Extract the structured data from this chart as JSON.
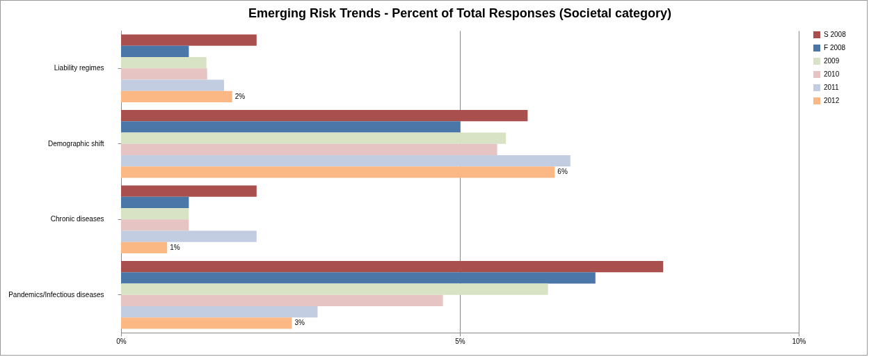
{
  "chart_data": {
    "type": "bar",
    "orientation": "horizontal",
    "title": "Emerging Risk Trends - Percent of Total Responses (Societal category)",
    "categories": [
      "Liability regimes",
      "Demographic shift",
      "Chronic diseases",
      "Pandemics/Infectious diseases"
    ],
    "series": [
      {
        "name": "S 2008",
        "color": "#a94f4d",
        "values": [
          2.0,
          6.0,
          2.0,
          8.0
        ]
      },
      {
        "name": "F 2008",
        "color": "#4a77a8",
        "values": [
          1.0,
          5.0,
          1.0,
          7.0
        ]
      },
      {
        "name": "2009",
        "color": "#d7e3c4",
        "values": [
          1.26,
          5.68,
          1.0,
          6.3
        ]
      },
      {
        "name": "2010",
        "color": "#e6c4c4",
        "values": [
          1.27,
          5.55,
          1.0,
          4.75
        ]
      },
      {
        "name": "2011",
        "color": "#c3cde2",
        "values": [
          1.52,
          6.63,
          2.0,
          2.9
        ]
      },
      {
        "name": "2012",
        "color": "#fbb884",
        "values": [
          1.64,
          6.4,
          0.68,
          2.52
        ],
        "value_labels": [
          "2%",
          "6%",
          "1%",
          "3%"
        ]
      }
    ],
    "xlim": [
      0,
      10
    ],
    "xticks": [
      {
        "value": 0,
        "label": "0%"
      },
      {
        "value": 5,
        "label": "5%"
      },
      {
        "value": 10,
        "label": "10%"
      }
    ],
    "grid": "x",
    "legend": "right"
  }
}
